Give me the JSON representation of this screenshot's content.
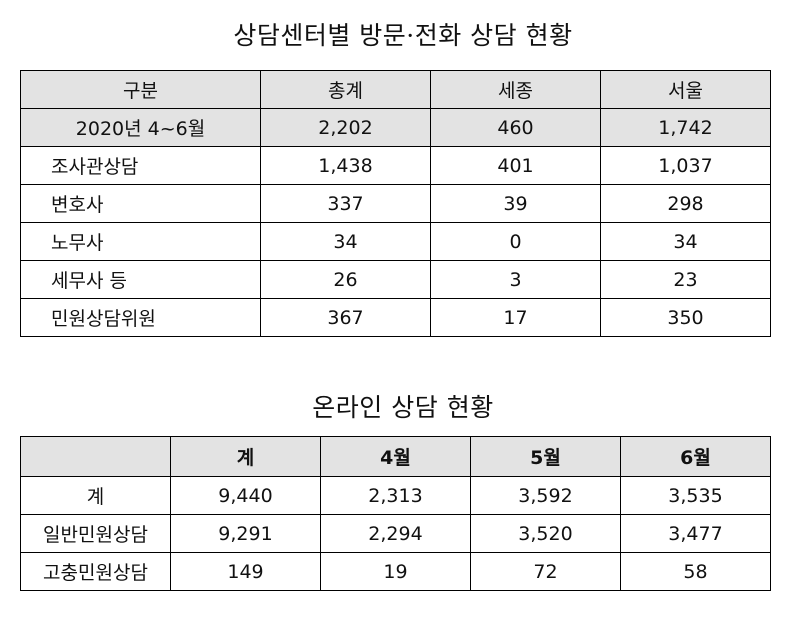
{
  "title1": "상담센터별 방문·전화 상담 현황",
  "table1": {
    "headers": [
      "구분",
      "총계",
      "세종",
      "서울"
    ],
    "rows": [
      [
        "2020년 4~6월",
        "2,202",
        "460",
        "1,742"
      ],
      [
        "조사관상담",
        "1,438",
        "401",
        "1,037"
      ],
      [
        "변호사",
        "337",
        "39",
        "298"
      ],
      [
        "노무사",
        "34",
        "0",
        "34"
      ],
      [
        "세무사 등",
        "26",
        "3",
        "23"
      ],
      [
        "민원상담위원",
        "367",
        "17",
        "350"
      ]
    ]
  },
  "title2": "온라인 상담 현황",
  "table2": {
    "headers": [
      "",
      "계",
      "4월",
      "5월",
      "6월"
    ],
    "rows": [
      [
        "계",
        "9,440",
        "2,313",
        "3,592",
        "3,535"
      ],
      [
        "일반민원상담",
        "9,291",
        "2,294",
        "3,520",
        "3,477"
      ],
      [
        "고충민원상담",
        "149",
        "19",
        "72",
        "58"
      ]
    ]
  }
}
